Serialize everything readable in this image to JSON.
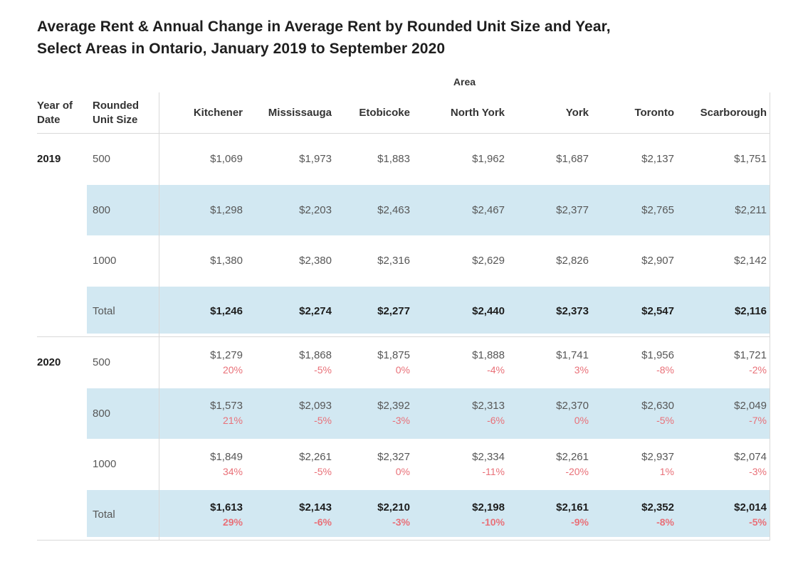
{
  "title": {
    "line1": "Average Rent & Annual Change in Average Rent by Rounded Unit Size and Year,",
    "line2": "Select Areas in Ontario, January 2019 to September 2020"
  },
  "table": {
    "area_label": "Area",
    "year_header": "Year of Date",
    "unit_header": "Rounded Unit Size",
    "areas": [
      "Kitchener",
      "Mississauga",
      "Etobicoke",
      "North York",
      "York",
      "Toronto",
      "Scarborough"
    ],
    "groups": [
      {
        "year": "2019",
        "rows": [
          {
            "unit": "500",
            "shaded": false,
            "values": [
              "$1,069",
              "$1,973",
              "$1,883",
              "$1,962",
              "$1,687",
              "$2,137",
              "$1,751"
            ]
          },
          {
            "unit": "800",
            "shaded": true,
            "values": [
              "$1,298",
              "$2,203",
              "$2,463",
              "$2,467",
              "$2,377",
              "$2,765",
              "$2,211"
            ]
          },
          {
            "unit": "1000",
            "shaded": false,
            "values": [
              "$1,380",
              "$2,380",
              "$2,316",
              "$2,629",
              "$2,826",
              "$2,907",
              "$2,142"
            ]
          },
          {
            "unit": "Total",
            "shaded": true,
            "values": [
              "$1,246",
              "$2,274",
              "$2,277",
              "$2,440",
              "$2,373",
              "$2,547",
              "$2,116"
            ]
          }
        ]
      },
      {
        "year": "2020",
        "rows": [
          {
            "unit": "500",
            "shaded": false,
            "values": [
              "$1,279",
              "$1,868",
              "$1,875",
              "$1,888",
              "$1,741",
              "$1,956",
              "$1,721"
            ],
            "changes": [
              "20%",
              "-5%",
              "0%",
              "-4%",
              "3%",
              "-8%",
              "-2%"
            ]
          },
          {
            "unit": "800",
            "shaded": true,
            "values": [
              "$1,573",
              "$2,093",
              "$2,392",
              "$2,313",
              "$2,370",
              "$2,630",
              "$2,049"
            ],
            "changes": [
              "21%",
              "-5%",
              "-3%",
              "-6%",
              "0%",
              "-5%",
              "-7%"
            ]
          },
          {
            "unit": "1000",
            "shaded": false,
            "values": [
              "$1,849",
              "$2,261",
              "$2,327",
              "$2,334",
              "$2,261",
              "$2,937",
              "$2,074"
            ],
            "changes": [
              "34%",
              "-5%",
              "0%",
              "-11%",
              "-20%",
              "1%",
              "-3%"
            ]
          },
          {
            "unit": "Total",
            "shaded": true,
            "values": [
              "$1,613",
              "$2,143",
              "$2,210",
              "$2,198",
              "$2,161",
              "$2,352",
              "$2,014"
            ],
            "changes": [
              "29%",
              "-6%",
              "-3%",
              "-10%",
              "-9%",
              "-8%",
              "-5%"
            ]
          }
        ]
      }
    ]
  },
  "colors": {
    "band_blue": "#d2e8f2",
    "change_red": "#e97078",
    "grid_line": "#d9d9d9",
    "value_gray": "#575757",
    "header_dark": "#333333",
    "title_black": "#1e1e1e"
  },
  "chart_data": {
    "type": "table",
    "title": "Average Rent & Annual Change in Average Rent by Rounded Unit Size and Year, Select Areas in Ontario, January 2019 to September 2020",
    "column_group_label": "Area",
    "columns": [
      "Kitchener",
      "Mississauga",
      "Etobicoke",
      "North York",
      "York",
      "Toronto",
      "Scarborough"
    ],
    "row_dimensions": [
      "Year of Date",
      "Rounded Unit Size"
    ],
    "rows": [
      {
        "year": 2019,
        "unit_size": "500",
        "avg_rent": [
          1069,
          1973,
          1883,
          1962,
          1687,
          2137,
          1751
        ]
      },
      {
        "year": 2019,
        "unit_size": "800",
        "avg_rent": [
          1298,
          2203,
          2463,
          2467,
          2377,
          2765,
          2211
        ]
      },
      {
        "year": 2019,
        "unit_size": "1000",
        "avg_rent": [
          1380,
          2380,
          2316,
          2629,
          2826,
          2907,
          2142
        ]
      },
      {
        "year": 2019,
        "unit_size": "Total",
        "avg_rent": [
          1246,
          2274,
          2277,
          2440,
          2373,
          2547,
          2116
        ]
      },
      {
        "year": 2020,
        "unit_size": "500",
        "avg_rent": [
          1279,
          1868,
          1875,
          1888,
          1741,
          1956,
          1721
        ],
        "annual_change_pct": [
          20,
          -5,
          0,
          -4,
          3,
          -8,
          -2
        ]
      },
      {
        "year": 2020,
        "unit_size": "800",
        "avg_rent": [
          1573,
          2093,
          2392,
          2313,
          2370,
          2630,
          2049
        ],
        "annual_change_pct": [
          21,
          -5,
          -3,
          -6,
          0,
          -5,
          -7
        ]
      },
      {
        "year": 2020,
        "unit_size": "1000",
        "avg_rent": [
          1849,
          2261,
          2327,
          2334,
          2261,
          2937,
          2074
        ],
        "annual_change_pct": [
          34,
          -5,
          0,
          -11,
          -20,
          1,
          -3
        ]
      },
      {
        "year": 2020,
        "unit_size": "Total",
        "avg_rent": [
          1613,
          2143,
          2210,
          2198,
          2161,
          2352,
          2014
        ],
        "annual_change_pct": [
          29,
          -6,
          -3,
          -10,
          -9,
          -8,
          -5
        ]
      }
    ]
  }
}
